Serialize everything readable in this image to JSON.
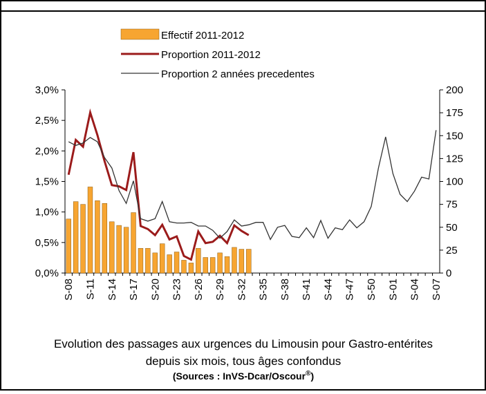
{
  "chart_data": {
    "type": "bar_line_dual",
    "title": "Evolution des passages aux urgences  du Limousin pour Gastro-entérites",
    "subtitle": "depuis six mois, tous âges confondus",
    "source": "(Sources : InVS-Dcar/Oscour",
    "source_mark": "®",
    "source_end": ")",
    "categories": [
      "S-08",
      null,
      null,
      "S-11",
      null,
      null,
      "S-14",
      null,
      null,
      "S-17",
      null,
      null,
      "S-20",
      null,
      null,
      "S-23",
      null,
      null,
      "S-26",
      null,
      null,
      "S-29",
      null,
      null,
      "S-32",
      null,
      null,
      "S-35",
      null,
      null,
      "S-38",
      null,
      null,
      "S-41",
      null,
      null,
      "S-44",
      null,
      null,
      "S-47",
      null,
      null,
      "S-50",
      null,
      null,
      "S-01",
      null,
      null,
      "S-04",
      null,
      null,
      "S-07"
    ],
    "ylim": [
      0,
      3.0
    ],
    "yticks": [
      {
        "value": 0,
        "label": "0,0%"
      },
      {
        "value": 0.5,
        "label": "0,5%"
      },
      {
        "value": 1.0,
        "label": "1,0%"
      },
      {
        "value": 1.5,
        "label": "1,5%"
      },
      {
        "value": 2.0,
        "label": "2,0%"
      },
      {
        "value": 2.5,
        "label": "2,5%"
      },
      {
        "value": 3.0,
        "label": "3,0%"
      }
    ],
    "y2lim": [
      0,
      200
    ],
    "y2ticks": [
      0,
      25,
      50,
      75,
      100,
      125,
      150,
      175,
      200
    ],
    "legend": "top",
    "series": [
      {
        "name": "Effectif 2011-2012",
        "kind": "bar",
        "axis": "y2",
        "color": "#f7a531",
        "values": [
          59,
          78,
          75,
          94,
          79,
          76,
          56,
          52,
          50,
          66,
          27,
          27,
          22,
          32,
          20,
          23,
          14,
          11,
          27,
          17,
          17,
          22,
          18,
          28,
          26,
          26,
          null,
          null,
          null,
          null,
          null,
          null,
          null,
          null,
          null,
          null,
          null,
          null,
          null,
          null,
          null,
          null,
          null,
          null,
          null,
          null,
          null,
          null,
          null,
          null,
          null,
          null
        ]
      },
      {
        "name": "Proportion 2011-2012",
        "kind": "line",
        "color": "#9b1b1b",
        "values": [
          1.61,
          2.18,
          2.07,
          2.63,
          2.26,
          1.83,
          1.44,
          1.42,
          1.36,
          1.98,
          0.77,
          0.72,
          0.62,
          0.79,
          0.55,
          0.6,
          0.28,
          0.22,
          0.68,
          0.49,
          0.51,
          0.61,
          0.49,
          0.78,
          0.69,
          0.62,
          null,
          null,
          null,
          null,
          null,
          null,
          null,
          null,
          null,
          null,
          null,
          null,
          null,
          null,
          null,
          null,
          null,
          null,
          null,
          null,
          null,
          null,
          null,
          null,
          null,
          null
        ]
      },
      {
        "name": "Proportion 2 années precedentes",
        "kind": "line",
        "color": "#333333",
        "values": [
          2.15,
          2.09,
          2.13,
          2.22,
          2.15,
          1.89,
          1.72,
          1.35,
          1.14,
          1.51,
          0.89,
          0.85,
          0.89,
          1.17,
          0.84,
          0.82,
          0.82,
          0.83,
          0.77,
          0.77,
          0.7,
          0.57,
          0.68,
          0.87,
          0.77,
          0.79,
          0.83,
          0.83,
          0.55,
          0.75,
          0.78,
          0.6,
          0.58,
          0.74,
          0.58,
          0.86,
          0.57,
          0.74,
          0.71,
          0.87,
          0.74,
          0.84,
          1.09,
          1.72,
          2.23,
          1.63,
          1.29,
          1.17,
          1.34,
          1.57,
          1.54,
          2.34
        ]
      }
    ]
  }
}
